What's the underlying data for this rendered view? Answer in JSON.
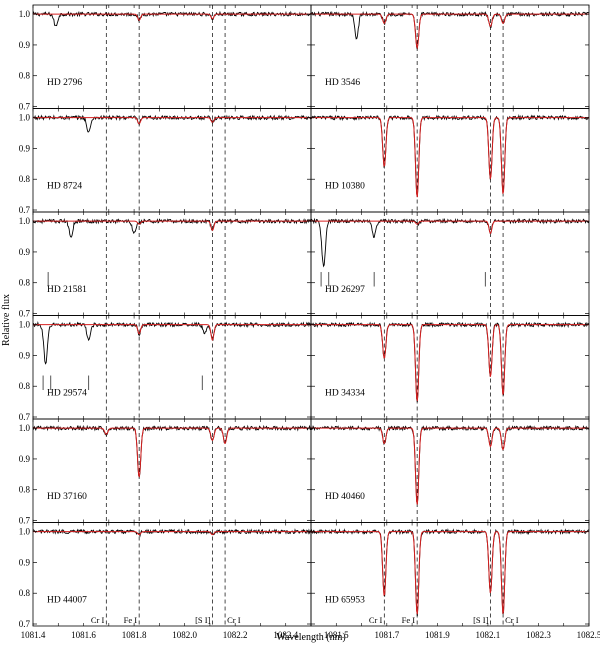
{
  "chart_data": {
    "type": "line",
    "xlabel": "Wavelength (nm)",
    "ylabel": "Relative flux",
    "grid": false,
    "ylim": [
      0.7,
      1.02
    ],
    "y_ticks": [
      "0.7",
      "0.8",
      "0.9",
      "1.0"
    ],
    "left_xlim": [
      1081.4,
      1082.5
    ],
    "left_x_ticks": [
      "1081.4",
      "1081.6",
      "1081.8",
      "1082.0",
      "1082.2",
      "1082.4"
    ],
    "right_xlim": [
      1081.4,
      1082.5
    ],
    "right_x_ticks": [
      "1081.5",
      "1081.7",
      "1081.9",
      "1082.1",
      "1082.3",
      "1082.5"
    ],
    "colors": {
      "observed": "#000000",
      "model": "#d62020",
      "marker": "#555555"
    },
    "left_lines": [
      {
        "name": "Cr I",
        "wavelength": 1081.69
      },
      {
        "name": "Fe I",
        "wavelength": 1081.82
      },
      {
        "name": "[S I]",
        "wavelength": 1082.11
      },
      {
        "name": "Cr I",
        "wavelength": 1082.16
      }
    ],
    "right_lines": [
      {
        "name": "Cr I",
        "wavelength": 1081.69
      },
      {
        "name": "Fe I",
        "wavelength": 1081.82
      },
      {
        "name": "[S I]",
        "wavelength": 1082.11
      },
      {
        "name": "Cr I",
        "wavelength": 1082.16
      }
    ],
    "panels": [
      {
        "star": "HD 2796",
        "column": "left",
        "row": 0,
        "depths": [
          0.0,
          0.02,
          0.015,
          0.0
        ],
        "width": 0.008,
        "telluric": [
          [
            1081.49,
            0.04
          ]
        ],
        "markers": []
      },
      {
        "star": "HD 3546",
        "column": "right",
        "row": 0,
        "depths": [
          0.03,
          0.11,
          0.04,
          0.03
        ],
        "width": 0.009,
        "telluric": [
          [
            1081.58,
            0.08
          ]
        ],
        "markers": []
      },
      {
        "star": "HD 8724",
        "column": "left",
        "row": 1,
        "depths": [
          0.0,
          0.02,
          0.015,
          0.0
        ],
        "width": 0.008,
        "telluric": [
          [
            1081.62,
            0.05
          ]
        ],
        "markers": []
      },
      {
        "star": "HD 10380",
        "column": "right",
        "row": 1,
        "depths": [
          0.16,
          0.26,
          0.2,
          0.25
        ],
        "width": 0.009,
        "telluric": [],
        "markers": []
      },
      {
        "star": "HD 21581",
        "column": "left",
        "row": 2,
        "depths": [
          0.0,
          0.01,
          0.03,
          0.0
        ],
        "width": 0.008,
        "telluric": [
          [
            1081.55,
            0.05
          ],
          [
            1081.8,
            0.04
          ]
        ],
        "markers": [
          1081.46
        ]
      },
      {
        "star": "HD 26297",
        "column": "right",
        "row": 2,
        "depths": [
          0.0,
          0.01,
          0.04,
          0.0
        ],
        "width": 0.008,
        "telluric": [
          [
            1081.45,
            0.15
          ],
          [
            1081.65,
            0.05
          ]
        ],
        "markers": [
          1081.44,
          1081.47,
          1081.65,
          1082.09
        ]
      },
      {
        "star": "HD 29574",
        "column": "left",
        "row": 3,
        "depths": [
          0.0,
          0.03,
          0.05,
          0.0
        ],
        "width": 0.008,
        "telluric": [
          [
            1081.45,
            0.13
          ],
          [
            1081.62,
            0.05
          ],
          [
            1082.08,
            0.03
          ]
        ],
        "markers": [
          1081.44,
          1081.47,
          1081.62,
          1082.07
        ]
      },
      {
        "star": "HD 34334",
        "column": "right",
        "row": 3,
        "depths": [
          0.11,
          0.25,
          0.17,
          0.23
        ],
        "width": 0.009,
        "telluric": [],
        "markers": []
      },
      {
        "star": "HD 37160",
        "column": "left",
        "row": 4,
        "depths": [
          0.02,
          0.16,
          0.04,
          0.05
        ],
        "width": 0.009,
        "telluric": [],
        "markers": []
      },
      {
        "star": "HD 40460",
        "column": "right",
        "row": 4,
        "depths": [
          0.05,
          0.25,
          0.06,
          0.07
        ],
        "width": 0.009,
        "telluric": [],
        "markers": []
      },
      {
        "star": "HD 44007",
        "column": "left",
        "row": 5,
        "depths": [
          0.0,
          0.01,
          0.01,
          0.0
        ],
        "width": 0.008,
        "telluric": [],
        "markers": []
      },
      {
        "star": "HD 65953",
        "column": "right",
        "row": 5,
        "depths": [
          0.21,
          0.27,
          0.2,
          0.27
        ],
        "width": 0.009,
        "telluric": [],
        "markers": []
      }
    ]
  }
}
